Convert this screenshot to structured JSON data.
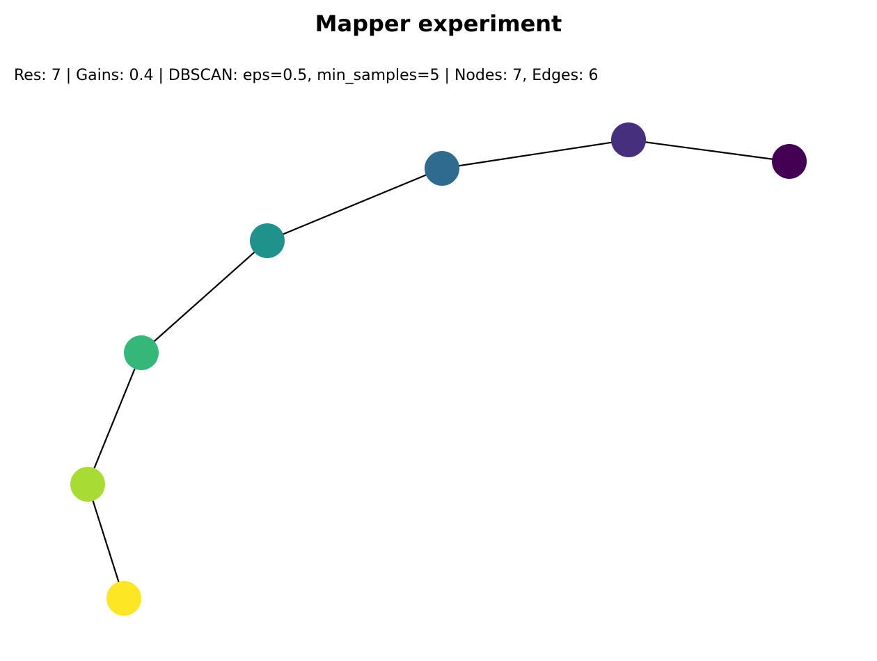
{
  "title": "Mapper experiment",
  "subtitle": "Res: 7 | Gains: 0.4 | DBSCAN: eps=0.5, min_samples=5 | Nodes: 7, Edges: 6",
  "graph": {
    "nodes": [
      {
        "id": "n0",
        "color": "#440154"
      },
      {
        "id": "n1",
        "color": "#46307e"
      },
      {
        "id": "n2",
        "color": "#2e6b8e"
      },
      {
        "id": "n3",
        "color": "#20928c"
      },
      {
        "id": "n4",
        "color": "#35b779"
      },
      {
        "id": "n5",
        "color": "#a8db34"
      },
      {
        "id": "n6",
        "color": "#fde725"
      }
    ],
    "edges": [
      [
        "n0",
        "n1"
      ],
      [
        "n1",
        "n2"
      ],
      [
        "n2",
        "n3"
      ],
      [
        "n3",
        "n4"
      ],
      [
        "n4",
        "n5"
      ],
      [
        "n5",
        "n6"
      ]
    ],
    "edge_color": "#000000"
  }
}
